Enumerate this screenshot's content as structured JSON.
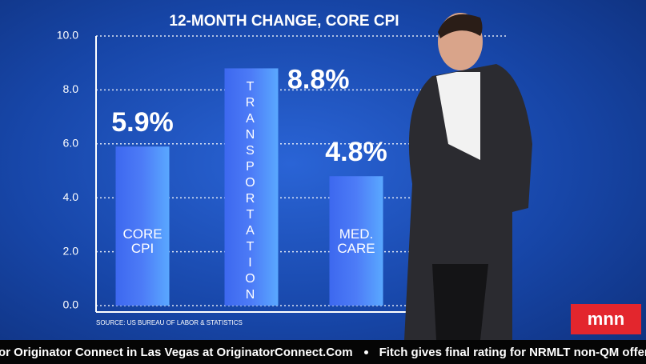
{
  "chart_data": {
    "type": "bar",
    "title": "12-MONTH CHANGE, CORE CPI",
    "categories": [
      "CORE CPI",
      "TRANSPORTATION",
      "MED. CARE"
    ],
    "values": [
      5.9,
      8.8,
      4.8
    ],
    "value_labels": [
      "5.9%",
      "8.8%",
      "4.8%"
    ],
    "color": "#4d7cf7",
    "ylim": [
      0,
      10
    ],
    "yticks": [
      {
        "value": 0,
        "label": "0.0"
      },
      {
        "value": 2,
        "label": "2.0"
      },
      {
        "value": 4,
        "label": "4.0"
      },
      {
        "value": 6,
        "label": "6.0"
      },
      {
        "value": 8,
        "label": "8.0"
      },
      {
        "value": 10,
        "label": "10.0"
      }
    ],
    "grid": true,
    "source": "SOURCE: US BUREAU OF LABOR & STATISTICS"
  },
  "logo": "mnn",
  "ticker": [
    "or Originator Connect in Las Vegas at OriginatorConnect.Com",
    "Fitch gives final rating for NRMLT non-QM offering"
  ]
}
